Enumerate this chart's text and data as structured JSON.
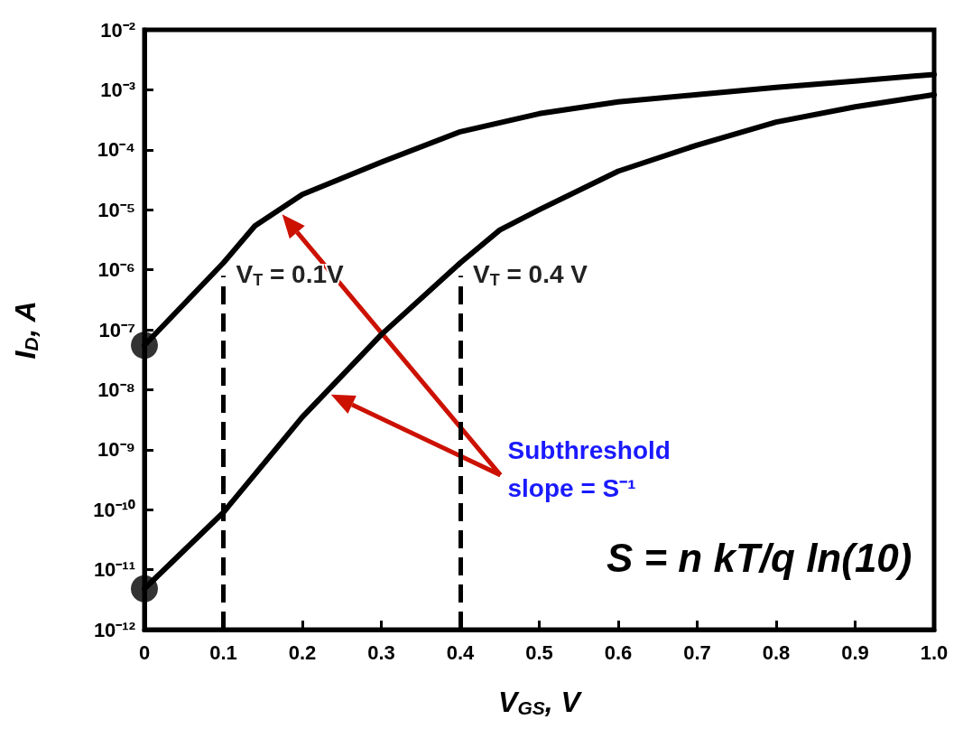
{
  "chart_data": {
    "type": "line",
    "xlabel": "V$_{GS}$, V",
    "ylabel": "I$_{D}$, A",
    "series": [
      {
        "color": "#000000",
        "marker": "none",
        "x": [
          0,
          0.1,
          0.14,
          0.2,
          0.3,
          0.4,
          0.5,
          0.6,
          0.7,
          0.8,
          0.9,
          1.0
        ],
        "values": [
          5.5e-08,
          1.3e-06,
          5.4e-06,
          1.8e-05,
          6.2e-05,
          0.0002,
          0.0004,
          0.00063,
          0.00083,
          0.0011,
          0.0014,
          0.0018
        ]
      },
      {
        "color": "#000000",
        "marker": "none",
        "x": [
          0,
          0.1,
          0.2,
          0.3,
          0.4,
          0.45,
          0.5,
          0.6,
          0.7,
          0.8,
          0.9,
          1.0
        ],
        "values": [
          4.8e-12,
          9e-11,
          3.5e-09,
          8.3e-08,
          1.3e-06,
          4.6e-06,
          1e-05,
          4.4e-05,
          0.00012,
          0.00029,
          0.00052,
          0.00083
        ]
      },
      {
        "type": "scatter",
        "color": "#000000",
        "marker": "circle",
        "x": [
          0,
          0
        ],
        "values": [
          5.5e-08,
          4.8e-12
        ]
      }
    ],
    "log": "y",
    "xlim": [
      0,
      1.0
    ],
    "ylim": [
      1e-12,
      0.01
    ],
    "xticks": [
      0,
      0.1,
      0.2,
      0.3,
      0.4,
      0.5,
      0.6,
      0.7,
      0.8,
      0.9,
      {
        "value": 1.0,
        "label": "1.0"
      }
    ],
    "yticks": [
      {
        "value": 1e-12,
        "label": "10⁻¹²"
      },
      {
        "value": 1e-11,
        "label": "10⁻¹¹"
      },
      {
        "value": 1e-10,
        "label": "10⁻¹⁰"
      },
      {
        "value": 1e-09,
        "label": "10⁻⁹"
      },
      {
        "value": 1e-08,
        "label": "10⁻⁸"
      },
      {
        "value": 1e-07,
        "label": "10⁻⁷"
      },
      {
        "value": 1e-06,
        "label": "10⁻⁶"
      },
      {
        "value": 1e-05,
        "label": "10⁻⁵"
      },
      {
        "value": 0.0001,
        "label": "10⁻⁴"
      },
      {
        "value": 0.001,
        "label": "10⁻³"
      },
      {
        "value": 0.01,
        "label": "10⁻²"
      }
    ],
    "grid": false,
    "ref_lines": [
      {
        "axis": "x",
        "value": 0.1,
        "label": "V$_{T}$ = 0.1V",
        "color": "#000000",
        "line_style": "dashed"
      },
      {
        "axis": "x",
        "value": 0.4,
        "label": "V$_{T}$ = 0.4 V",
        "color": "#000000",
        "line_style": "dashed"
      }
    ],
    "annotations": [
      "Subthreshold slope = S⁻¹",
      "S = n kT/q ln(10)"
    ]
  }
}
